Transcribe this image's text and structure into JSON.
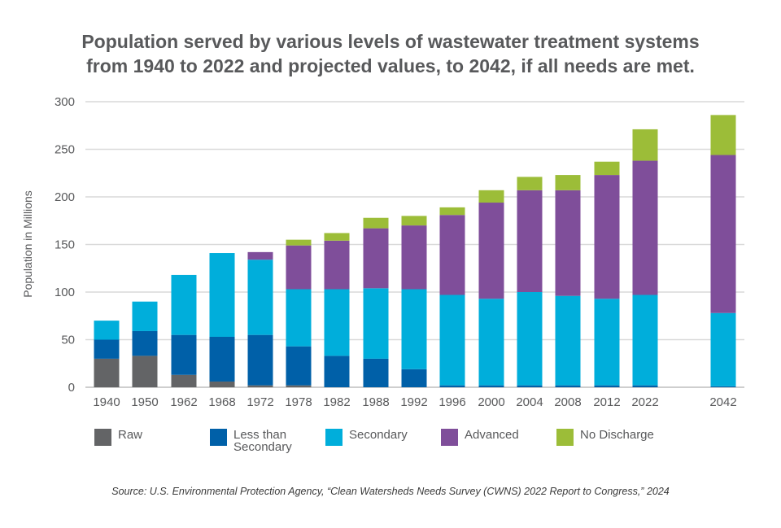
{
  "chart_data": {
    "type": "bar",
    "stacked": true,
    "title_lines": [
      "Population served by various levels of wastewater treatment systems",
      "from 1940 to 2022 and projected values, to 2042, if all needs are met."
    ],
    "ylabel": "Population in Millions",
    "xlabel": "",
    "ylim": [
      0,
      300
    ],
    "yticks": [
      0,
      50,
      100,
      150,
      200,
      250,
      300
    ],
    "grid": true,
    "legend_position": "bottom",
    "categories": [
      "1940",
      "1950",
      "1962",
      "1968",
      "1972",
      "1978",
      "1982",
      "1988",
      "1992",
      "1996",
      "2000",
      "2004",
      "2008",
      "2012",
      "2022",
      "2042"
    ],
    "series": [
      {
        "name": "Raw",
        "color": "#636466",
        "values": [
          30,
          33,
          13,
          6,
          2,
          2,
          0,
          0,
          0,
          0,
          0,
          0,
          0,
          0,
          0,
          0
        ]
      },
      {
        "name": "Less than Secondary",
        "color": "#0060a8",
        "values": [
          20,
          26,
          42,
          47,
          53,
          41,
          33,
          30,
          19,
          2,
          2,
          2,
          2,
          2,
          2,
          1
        ]
      },
      {
        "name": "Secondary",
        "color": "#00aedb",
        "values": [
          20,
          31,
          63,
          88,
          79,
          60,
          70,
          74,
          84,
          95,
          91,
          98,
          94,
          91,
          95,
          77
        ]
      },
      {
        "name": "Advanced",
        "color": "#7f4e9a",
        "values": [
          0,
          0,
          0,
          0,
          8,
          46,
          51,
          63,
          67,
          84,
          101,
          107,
          111,
          130,
          141,
          166
        ]
      },
      {
        "name": "No Discharge",
        "color": "#9cbd38",
        "values": [
          0,
          0,
          0,
          0,
          0,
          6,
          8,
          11,
          10,
          8,
          13,
          14,
          16,
          14,
          33,
          42
        ]
      }
    ]
  },
  "legend_labels": [
    "Raw",
    "Less than Secondary",
    "Secondary",
    "Advanced",
    "No Discharge"
  ],
  "source": "Source: U.S. Environmental Protection Agency, “Clean Watersheds Needs Survey (CWNS) 2022 Report to Congress,” 2024"
}
